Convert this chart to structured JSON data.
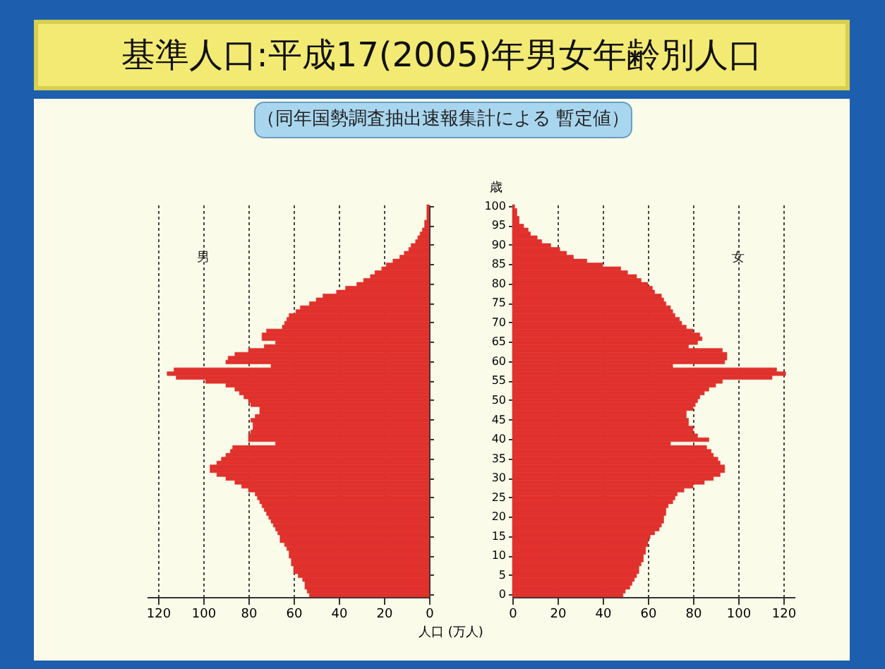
{
  "chart_data": [
    {
      "type": "bar",
      "orientation": "horizontal",
      "title": "基準人口:平成17(2005)年男女年齢別人口",
      "subtitle": "（同年国勢調査抽出速報集計による 暫定値）",
      "xlabel": "人口 (万人)",
      "categories": [
        "100",
        null,
        null,
        null,
        null,
        "95",
        null,
        null,
        null,
        null,
        "90",
        null,
        null,
        null,
        null,
        "85",
        null,
        null,
        null,
        null,
        "80",
        null,
        null,
        null,
        null,
        "75",
        null,
        null,
        null,
        null,
        "70",
        null,
        null,
        null,
        null,
        "65",
        null,
        null,
        null,
        null,
        "60",
        null,
        null,
        null,
        null,
        "55",
        null,
        null,
        null,
        null,
        "50",
        null,
        null,
        null,
        null,
        "45",
        null,
        null,
        null,
        null,
        "40",
        null,
        null,
        null,
        null,
        "35",
        null,
        null,
        null,
        null,
        "30",
        null,
        null,
        null,
        null,
        "25",
        null,
        null,
        null,
        null,
        "20",
        null,
        null,
        null,
        null,
        "15",
        null,
        null,
        null,
        null,
        "10",
        null,
        null,
        null,
        null,
        "5",
        null,
        null,
        null,
        null,
        "0"
      ],
      "series": [
        {
          "name": "男",
          "color": "#e0312c",
          "values": [
            1,
            1,
            1,
            1,
            2,
            2,
            3,
            4,
            5,
            6,
            8,
            9,
            11,
            13,
            16,
            19,
            21,
            24,
            26,
            29,
            32,
            37,
            41,
            47,
            50,
            53,
            57,
            59,
            62,
            63,
            64,
            65,
            72,
            74,
            74,
            68,
            73,
            80,
            86,
            89,
            90,
            70,
            113,
            116,
            112,
            99,
            90,
            86,
            84,
            82,
            80,
            79,
            75,
            75,
            77,
            79,
            78,
            78,
            79,
            80,
            80,
            68,
            87,
            88,
            90,
            92,
            94,
            97,
            97,
            94,
            90,
            86,
            83,
            80,
            77,
            76,
            75,
            74,
            73,
            72,
            71,
            70,
            69,
            68,
            67,
            66,
            66,
            64,
            63,
            62,
            62,
            61,
            61,
            60,
            60,
            58,
            56,
            55,
            55,
            54,
            53
          ]
        }
      ],
      "xlim": [
        125,
        0
      ],
      "xticks": [
        0,
        20,
        40,
        60,
        80,
        100,
        120
      ],
      "grid": "x",
      "tick_labels": "x"
    },
    {
      "type": "bar",
      "orientation": "horizontal",
      "ylabel": "歳",
      "categories": [
        "100",
        null,
        null,
        null,
        null,
        "95",
        null,
        null,
        null,
        null,
        "90",
        null,
        null,
        null,
        null,
        "85",
        null,
        null,
        null,
        null,
        "80",
        null,
        null,
        null,
        null,
        "75",
        null,
        null,
        null,
        null,
        "70",
        null,
        null,
        null,
        null,
        "65",
        null,
        null,
        null,
        null,
        "60",
        null,
        null,
        null,
        null,
        "55",
        null,
        null,
        null,
        null,
        "50",
        null,
        null,
        null,
        null,
        "45",
        null,
        null,
        null,
        null,
        "40",
        null,
        null,
        null,
        null,
        "35",
        null,
        null,
        null,
        null,
        "30",
        null,
        null,
        null,
        null,
        "25",
        null,
        null,
        null,
        null,
        "20",
        null,
        null,
        null,
        null,
        "15",
        null,
        null,
        null,
        null,
        "10",
        null,
        null,
        null,
        null,
        "5",
        null,
        null,
        null,
        null,
        "0"
      ],
      "series": [
        {
          "name": "女",
          "color": "#e0312c",
          "values": [
            1,
            2,
            2,
            3,
            3,
            5,
            7,
            8,
            11,
            13,
            17,
            21,
            24,
            27,
            33,
            40,
            48,
            51,
            55,
            57,
            60,
            62,
            63,
            66,
            67,
            68,
            70,
            71,
            72,
            74,
            75,
            77,
            80,
            83,
            84,
            82,
            78,
            93,
            95,
            95,
            94,
            71,
            117,
            121,
            115,
            93,
            90,
            87,
            85,
            83,
            82,
            81,
            80,
            77,
            77,
            78,
            78,
            80,
            80,
            82,
            87,
            70,
            86,
            88,
            89,
            91,
            92,
            94,
            94,
            92,
            89,
            85,
            80,
            76,
            73,
            72,
            71,
            69,
            68,
            68,
            67,
            67,
            66,
            65,
            63,
            61,
            60,
            60,
            59,
            59,
            58,
            58,
            57,
            56,
            56,
            55,
            54,
            53,
            52,
            50,
            49
          ]
        }
      ],
      "xlim": [
        0,
        125
      ],
      "xticks": [
        0,
        20,
        40,
        60,
        80,
        100,
        120
      ],
      "grid": "x"
    }
  ]
}
